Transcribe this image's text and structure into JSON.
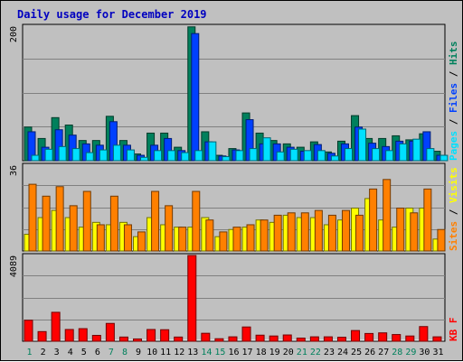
{
  "chart_data": {
    "type": "bar",
    "title": "Daily usage for December 2019",
    "categories": [
      "1",
      "2",
      "3",
      "4",
      "5",
      "6",
      "7",
      "8",
      "9",
      "10",
      "11",
      "12",
      "13",
      "14",
      "15",
      "16",
      "17",
      "18",
      "19",
      "20",
      "21",
      "22",
      "23",
      "24",
      "25",
      "26",
      "27",
      "28",
      "29",
      "30",
      "31"
    ],
    "weekend_days": [
      1,
      7,
      8,
      14,
      15,
      21,
      22,
      28,
      29
    ],
    "panels": [
      {
        "id": "hits-files-pages",
        "ymax_label": "200",
        "ymax": 200,
        "legend": [
          {
            "text": "Pages",
            "color": "#00e0ff"
          },
          {
            "text": " / ",
            "color": "#000000"
          },
          {
            "text": "Files",
            "color": "#0040ff"
          },
          {
            "text": " / ",
            "color": "#000000"
          },
          {
            "text": "Hits",
            "color": "#00805c"
          }
        ],
        "series": [
          {
            "name": "Hits",
            "color": "#00805c",
            "values": [
              50,
              33,
              64,
              53,
              30,
              30,
              66,
              30,
              10,
              41,
              41,
              20,
              199,
              43,
              8,
              18,
              71,
              41,
              30,
              25,
              20,
              28,
              13,
              29,
              67,
              33,
              33,
              37,
              31,
              40,
              14
            ]
          },
          {
            "name": "Files",
            "color": "#0040ff",
            "values": [
              43,
              20,
              46,
              38,
              25,
              23,
              58,
              23,
              8,
              23,
              33,
              15,
              189,
              28,
              7,
              16,
              61,
              25,
              25,
              20,
              14,
              24,
              11,
              25,
              50,
              26,
              21,
              29,
              29,
              43,
              8
            ]
          },
          {
            "name": "Pages",
            "color": "#00e0ff",
            "values": [
              8,
              17,
              21,
              18,
              12,
              16,
              23,
              16,
              5,
              15,
              15,
              12,
              15,
              28,
              6,
              15,
              18,
              34,
              13,
              17,
              15,
              15,
              7,
              18,
              47,
              18,
              15,
              25,
              32,
              18,
              8
            ]
          }
        ]
      },
      {
        "id": "visits-sites",
        "ymax_label": "36",
        "ymax": 36,
        "legend": [
          {
            "text": "Sites",
            "color": "#ff8000"
          },
          {
            "text": " / ",
            "color": "#000000"
          },
          {
            "text": "Visits",
            "color": "#ffff00"
          }
        ],
        "series": [
          {
            "name": "Visits",
            "color": "#ffff00",
            "values": [
              7,
              14,
              17,
              14,
              10,
              12,
              11,
              12,
              6,
              14,
              11,
              10,
              10,
              14,
              6,
              9,
              10,
              13,
              12,
              15,
              14,
              14,
              11,
              13,
              18,
              22,
              13,
              10,
              18,
              18,
              5
            ]
          },
          {
            "name": "Sites",
            "color": "#ff8000",
            "values": [
              28,
              23,
              27,
              19,
              25,
              11,
              23,
              11,
              8,
              25,
              19,
              10,
              25,
              13,
              8,
              10,
              11,
              13,
              15,
              16,
              16,
              17,
              15,
              17,
              15,
              26,
              30,
              18,
              16,
              26,
              9
            ]
          }
        ]
      },
      {
        "id": "kbytes",
        "ymax_label": "4089",
        "ymax": 4089,
        "legend": [
          {
            "text": "KB F",
            "color": "#ff0000"
          }
        ],
        "series": [
          {
            "name": "KB F",
            "color": "#ff0000",
            "values": [
              1000,
              460,
              1380,
              560,
              600,
              280,
              850,
              200,
              110,
              560,
              550,
              200,
              4089,
              380,
              120,
              210,
              680,
              290,
              250,
              300,
              150,
              210,
              210,
              190,
              510,
              370,
              400,
              320,
              250,
              700,
              210
            ]
          }
        ]
      }
    ]
  }
}
